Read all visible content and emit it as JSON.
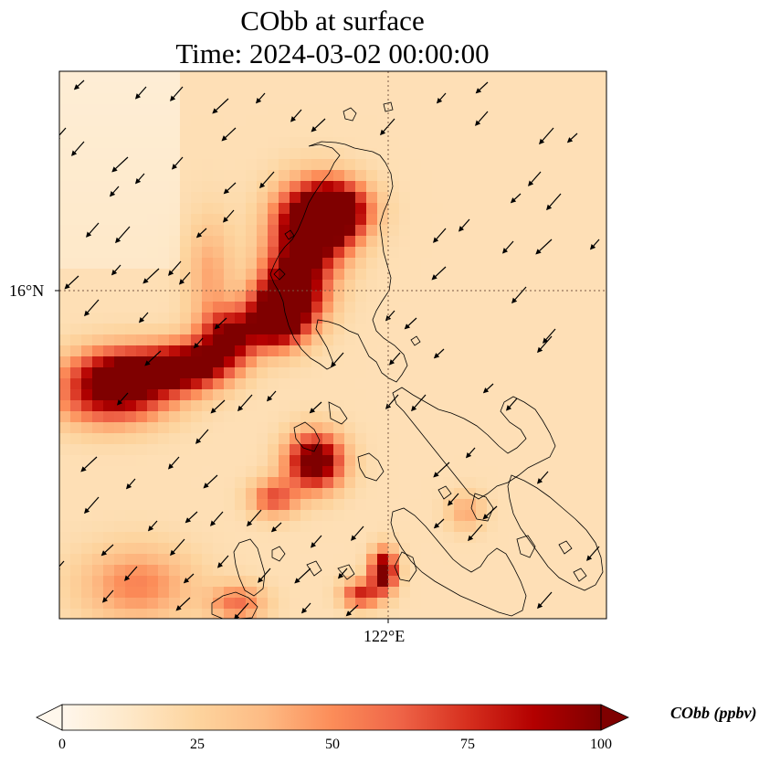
{
  "title": {
    "line1": "CObb at surface",
    "line2": "Time: 2024-03-02 00:00:00"
  },
  "map": {
    "lat_label": "16°N",
    "lon_label": "122°E",
    "colors": {
      "frame": "#000000",
      "coast": "#000000",
      "grid": "#7a5a45"
    }
  },
  "colorbar": {
    "label": "CObb (ppbv)",
    "ticks": [
      "0",
      "25",
      "50",
      "75",
      "100"
    ],
    "range": [
      0,
      100
    ],
    "colormap": [
      "#fff7ec",
      "#fee8c8",
      "#fdd49e",
      "#fdbb84",
      "#fc8d59",
      "#ef6548",
      "#d7301f",
      "#b30000",
      "#7f0000"
    ]
  }
}
